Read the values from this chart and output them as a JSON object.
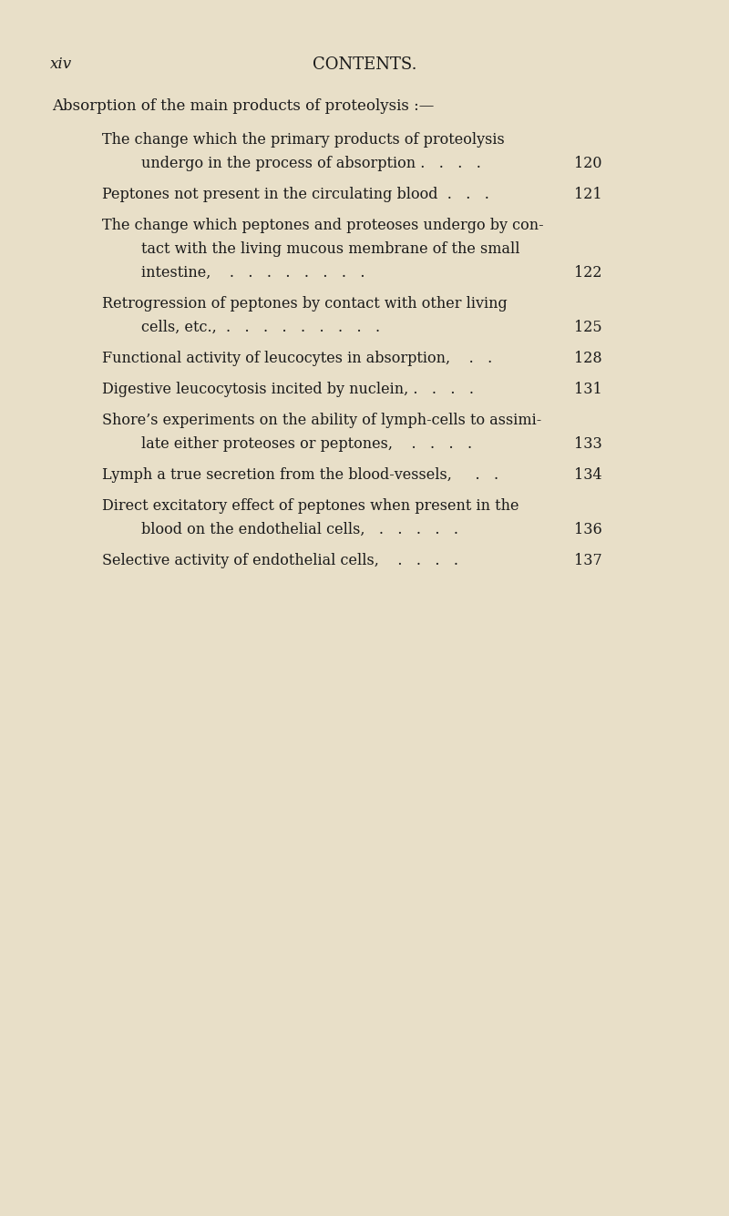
{
  "background_color": "#e8dfc8",
  "text_color": "#1a1a1a",
  "page_label": "xiv",
  "page_header": "CONTENTS.",
  "section_title": "Absorption of the main products of proteolysis :—",
  "entries": [
    {
      "indent": 1,
      "line1": "The change which the primary products of proteolysis",
      "line2": "undergo in the process of absorption .   .   .   .",
      "page": "120",
      "has_page": true,
      "multiline": true
    },
    {
      "indent": 1,
      "line1": "Peptones not present in the circulating blood  .   .   .",
      "line2": null,
      "page": "121",
      "has_page": true,
      "multiline": false
    },
    {
      "indent": 1,
      "line1": "The change which peptones and proteoses undergo by con-",
      "line2": "tact with the living mucous membrane of the small",
      "line3": "intestine,    .   .   .   .   .   .   .   .",
      "page": "122",
      "has_page": true,
      "multiline": true,
      "three_lines": true
    },
    {
      "indent": 1,
      "line1": "Retrogression of peptones by contact with other living",
      "line2": "cells, etc.,  .   .   .   .   .   .   .   .   .",
      "page": "125",
      "has_page": true,
      "multiline": true
    },
    {
      "indent": 1,
      "line1": "Functional activity of leucocytes in absorption,    .   .",
      "line2": null,
      "page": "128",
      "has_page": true,
      "multiline": false
    },
    {
      "indent": 1,
      "line1": "Digestive leucocytosis incited by nuclein, .   .   .   .",
      "line2": null,
      "page": "131",
      "has_page": true,
      "multiline": false
    },
    {
      "indent": 1,
      "line1": "Shore's experiments on the ability of lymph-cells to assimi-",
      "line2": "late either proteoses or peptones,    .   .   .   .",
      "page": "133",
      "has_page": true,
      "multiline": true
    },
    {
      "indent": 1,
      "line1": "Lymph a true secretion from the blood-vessels,     .   .",
      "line2": null,
      "page": "134",
      "has_page": true,
      "multiline": false
    },
    {
      "indent": 1,
      "line1": "Direct excitatory effect of peptones when present in the",
      "line2": "blood on the endothelial cells,   .   .   .   .   .",
      "page": "136",
      "has_page": true,
      "multiline": true
    },
    {
      "indent": 1,
      "line1": "Selective activity of endothelial cells,    .   .   .   .",
      "line2": null,
      "page": "137",
      "has_page": true,
      "multiline": false
    }
  ],
  "font_size_header": 13,
  "font_size_label": 12,
  "font_size_section": 12,
  "font_size_entry": 11.5,
  "font_size_page": 11.5
}
